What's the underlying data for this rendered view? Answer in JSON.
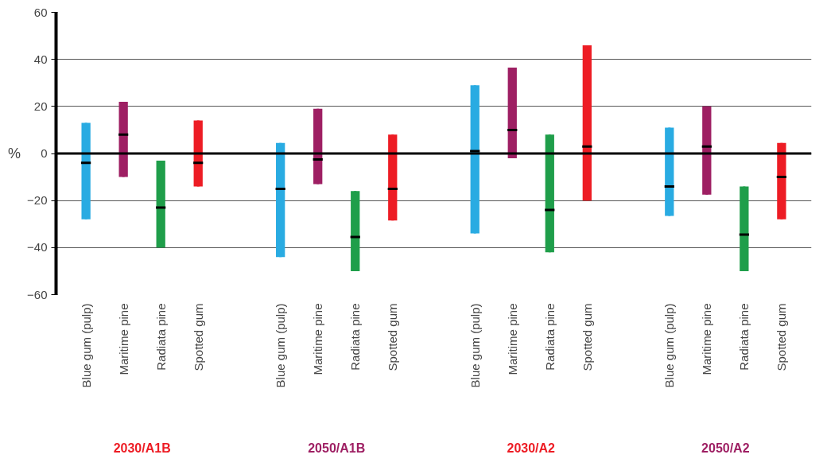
{
  "chart_data": {
    "type": "box",
    "ylabel": "%",
    "categories": [
      "Blue gum (pulp)",
      "Maritime pine",
      "Radiata pine",
      "Spotted gum",
      "Blue gum (pulp)",
      "Maritime pine",
      "Radiata pine",
      "Spotted gum",
      "Blue gum (pulp)",
      "Maritime pine",
      "Radiata pine",
      "Spotted gum",
      "Blue gum (pulp)",
      "Maritime pine",
      "Radiata pine",
      "Spotted gum"
    ],
    "colors": [
      "#29abe2",
      "#9e1f63",
      "#1f9e4a",
      "#ed1c24",
      "#29abe2",
      "#9e1f63",
      "#1f9e4a",
      "#ed1c24",
      "#29abe2",
      "#9e1f63",
      "#1f9e4a",
      "#ed1c24",
      "#29abe2",
      "#9e1f63",
      "#1f9e4a",
      "#ed1c24"
    ],
    "boxes": [
      {
        "low": -28,
        "q1": -28,
        "median": -4,
        "q3": 13,
        "high": 13
      },
      {
        "low": -10,
        "q1": -10,
        "median": 8,
        "q3": 22,
        "high": 22
      },
      {
        "low": -40,
        "q1": -40,
        "median": -23,
        "q3": -3,
        "high": -3
      },
      {
        "low": -14,
        "q1": -14,
        "median": -4,
        "q3": 14,
        "high": 14
      },
      {
        "low": -44,
        "q1": -44,
        "median": -15,
        "q3": 4.5,
        "high": 4.5
      },
      {
        "low": -13,
        "q1": -13,
        "median": -2.5,
        "q3": 19,
        "high": 19
      },
      {
        "low": -50,
        "q1": -50,
        "median": -35.5,
        "q3": -16,
        "high": -16
      },
      {
        "low": -28.5,
        "q1": -28.5,
        "median": -15,
        "q3": 8,
        "high": 8
      },
      {
        "low": -34,
        "q1": -34,
        "median": 1,
        "q3": 29,
        "high": 29
      },
      {
        "low": -2,
        "q1": -2,
        "median": 10,
        "q3": 36.5,
        "high": 36.5
      },
      {
        "low": -42,
        "q1": -42,
        "median": -24,
        "q3": 8,
        "high": 8
      },
      {
        "low": -20,
        "q1": -20,
        "median": 3,
        "q3": 46,
        "high": 46
      },
      {
        "low": -26.5,
        "q1": -26.5,
        "median": -14,
        "q3": 11,
        "high": 11
      },
      {
        "low": -17.5,
        "q1": -17.5,
        "median": 3,
        "q3": 20,
        "high": 20
      },
      {
        "low": -50,
        "q1": -50,
        "median": -34.5,
        "q3": -14,
        "high": -14
      },
      {
        "low": -28,
        "q1": -28,
        "median": -10,
        "q3": 4.5,
        "high": 4.5
      }
    ],
    "ylim": [
      -60,
      60
    ],
    "yticks": [
      -60,
      -40,
      -20,
      0,
      20,
      40,
      60
    ],
    "grid": "y",
    "ref_lines": [
      {
        "axis": "y",
        "value": 0,
        "color": "#000000"
      }
    ],
    "annotations": [
      "2030/A1B",
      "2050/A1B",
      "2030/A2",
      "2050/A2"
    ]
  }
}
